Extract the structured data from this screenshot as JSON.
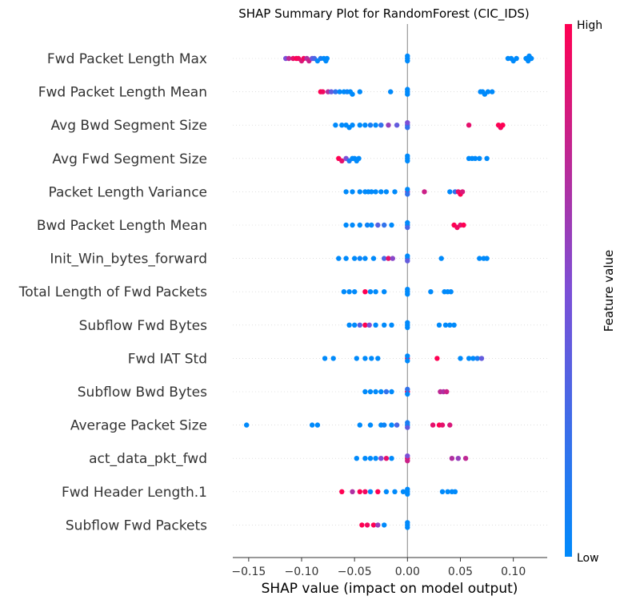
{
  "chart_data": {
    "type": "scatter",
    "subtype": "shap-beeswarm",
    "title": "SHAP Summary Plot for RandomForest (CIC_IDS)",
    "xlabel": "SHAP value (impact on model output)",
    "xlim": [
      -0.165,
      0.132
    ],
    "x_ticks": [
      -0.15,
      -0.1,
      -0.05,
      0.0,
      0.05,
      0.1
    ],
    "x_tick_labels": [
      "−0.15",
      "−0.10",
      "−0.05",
      "0.00",
      "0.05",
      "0.10"
    ],
    "colorbar": {
      "title": "Feature value",
      "high_label": "High",
      "low_label": "Low",
      "low_color": "#008afb",
      "mid_color": "#7c4fd6",
      "high_color": "#ff0052"
    },
    "features": [
      {
        "name": "Fwd Packet Length Max",
        "points": [
          {
            "x": -0.115,
            "v": 0.5
          },
          {
            "x": -0.112,
            "v": 0.75
          },
          {
            "x": -0.108,
            "v": 0.9
          },
          {
            "x": -0.105,
            "v": 1.0
          },
          {
            "x": -0.103,
            "v": 0.95
          },
          {
            "x": -0.1,
            "v": 0.85
          },
          {
            "x": -0.098,
            "v": 0.95
          },
          {
            "x": -0.095,
            "v": 0.7
          },
          {
            "x": -0.093,
            "v": 0.8
          },
          {
            "x": -0.09,
            "v": 0.45
          },
          {
            "x": -0.088,
            "v": 0.3
          },
          {
            "x": -0.085,
            "v": 0.0
          },
          {
            "x": -0.082,
            "v": 0.1
          },
          {
            "x": -0.079,
            "v": 0.0
          },
          {
            "x": -0.077,
            "v": 0.0
          },
          {
            "x": -0.076,
            "v": 0.0
          },
          {
            "x": 0.0,
            "v": 0.0
          },
          {
            "x": 0.0,
            "v": 0.0
          },
          {
            "x": 0.0,
            "v": 0.0
          },
          {
            "x": 0.095,
            "v": 0.0
          },
          {
            "x": 0.098,
            "v": 0.0
          },
          {
            "x": 0.1,
            "v": 0.0
          },
          {
            "x": 0.103,
            "v": 0.0
          },
          {
            "x": 0.112,
            "v": 0.0
          },
          {
            "x": 0.114,
            "v": 0.0
          },
          {
            "x": 0.115,
            "v": 0.0
          },
          {
            "x": 0.117,
            "v": 0.0
          }
        ]
      },
      {
        "name": "Fwd Packet Length Mean",
        "points": [
          {
            "x": -0.082,
            "v": 1.0
          },
          {
            "x": -0.08,
            "v": 0.95
          },
          {
            "x": -0.075,
            "v": 0.7
          },
          {
            "x": -0.072,
            "v": 0.4
          },
          {
            "x": -0.068,
            "v": 0.2
          },
          {
            "x": -0.064,
            "v": 0.0
          },
          {
            "x": -0.06,
            "v": 0.0
          },
          {
            "x": -0.057,
            "v": 0.05
          },
          {
            "x": -0.054,
            "v": 0.0
          },
          {
            "x": -0.052,
            "v": 0.0
          },
          {
            "x": -0.045,
            "v": 0.0
          },
          {
            "x": -0.016,
            "v": 0.0
          },
          {
            "x": 0.0,
            "v": 0.0
          },
          {
            "x": 0.0,
            "v": 0.0
          },
          {
            "x": 0.0,
            "v": 0.0
          },
          {
            "x": 0.069,
            "v": 0.0
          },
          {
            "x": 0.071,
            "v": 0.0
          },
          {
            "x": 0.073,
            "v": 0.0
          },
          {
            "x": 0.076,
            "v": 0.0
          },
          {
            "x": 0.08,
            "v": 0.0
          }
        ]
      },
      {
        "name": "Avg Bwd Segment Size",
        "points": [
          {
            "x": -0.068,
            "v": 0.0
          },
          {
            "x": -0.062,
            "v": 0.0
          },
          {
            "x": -0.058,
            "v": 0.0
          },
          {
            "x": -0.055,
            "v": 0.0
          },
          {
            "x": -0.052,
            "v": 0.0
          },
          {
            "x": -0.045,
            "v": 0.0
          },
          {
            "x": -0.04,
            "v": 0.0
          },
          {
            "x": -0.035,
            "v": 0.1
          },
          {
            "x": -0.03,
            "v": 0.0
          },
          {
            "x": -0.025,
            "v": 0.2
          },
          {
            "x": -0.018,
            "v": 0.6
          },
          {
            "x": -0.01,
            "v": 0.4
          },
          {
            "x": 0.0,
            "v": 0.3
          },
          {
            "x": 0.0,
            "v": 0.2
          },
          {
            "x": 0.0,
            "v": 0.5
          },
          {
            "x": 0.058,
            "v": 0.9
          },
          {
            "x": 0.086,
            "v": 1.0
          },
          {
            "x": 0.088,
            "v": 0.95
          },
          {
            "x": 0.09,
            "v": 1.0
          }
        ]
      },
      {
        "name": "Avg Fwd Segment Size",
        "points": [
          {
            "x": -0.065,
            "v": 1.0
          },
          {
            "x": -0.062,
            "v": 0.9
          },
          {
            "x": -0.058,
            "v": 0.5
          },
          {
            "x": -0.055,
            "v": 0.1
          },
          {
            "x": -0.052,
            "v": 0.0
          },
          {
            "x": -0.05,
            "v": 0.0
          },
          {
            "x": -0.048,
            "v": 0.0
          },
          {
            "x": -0.046,
            "v": 0.0
          },
          {
            "x": 0.0,
            "v": 0.0
          },
          {
            "x": 0.0,
            "v": 0.0
          },
          {
            "x": 0.0,
            "v": 0.0
          },
          {
            "x": 0.058,
            "v": 0.0
          },
          {
            "x": 0.061,
            "v": 0.0
          },
          {
            "x": 0.064,
            "v": 0.0
          },
          {
            "x": 0.068,
            "v": 0.0
          },
          {
            "x": 0.075,
            "v": 0.0
          }
        ]
      },
      {
        "name": "Packet Length Variance",
        "points": [
          {
            "x": -0.058,
            "v": 0.0
          },
          {
            "x": -0.052,
            "v": 0.0
          },
          {
            "x": -0.045,
            "v": 0.0
          },
          {
            "x": -0.04,
            "v": 0.0
          },
          {
            "x": -0.037,
            "v": 0.0
          },
          {
            "x": -0.034,
            "v": 0.0
          },
          {
            "x": -0.03,
            "v": 0.0
          },
          {
            "x": -0.025,
            "v": 0.0
          },
          {
            "x": -0.02,
            "v": 0.0
          },
          {
            "x": -0.012,
            "v": 0.0
          },
          {
            "x": 0.0,
            "v": 0.6
          },
          {
            "x": 0.0,
            "v": 0.2
          },
          {
            "x": 0.0,
            "v": 0.0
          },
          {
            "x": 0.016,
            "v": 0.8
          },
          {
            "x": 0.04,
            "v": 0.0
          },
          {
            "x": 0.045,
            "v": 0.2
          },
          {
            "x": 0.048,
            "v": 0.9
          },
          {
            "x": 0.05,
            "v": 1.0
          },
          {
            "x": 0.052,
            "v": 0.85
          }
        ]
      },
      {
        "name": "Bwd Packet Length Mean",
        "points": [
          {
            "x": -0.058,
            "v": 0.0
          },
          {
            "x": -0.052,
            "v": 0.0
          },
          {
            "x": -0.045,
            "v": 0.0
          },
          {
            "x": -0.038,
            "v": 0.05
          },
          {
            "x": -0.034,
            "v": 0.0
          },
          {
            "x": -0.028,
            "v": 0.35
          },
          {
            "x": -0.022,
            "v": 0.2
          },
          {
            "x": -0.015,
            "v": 0.0
          },
          {
            "x": 0.0,
            "v": 0.1
          },
          {
            "x": 0.0,
            "v": 0.3
          },
          {
            "x": 0.0,
            "v": 0.0
          },
          {
            "x": 0.044,
            "v": 1.0
          },
          {
            "x": 0.047,
            "v": 0.95
          },
          {
            "x": 0.05,
            "v": 0.9
          },
          {
            "x": 0.053,
            "v": 1.0
          }
        ]
      },
      {
        "name": "Init_Win_bytes_forward",
        "points": [
          {
            "x": -0.065,
            "v": 0.0
          },
          {
            "x": -0.058,
            "v": 0.0
          },
          {
            "x": -0.05,
            "v": 0.0
          },
          {
            "x": -0.045,
            "v": 0.05
          },
          {
            "x": -0.04,
            "v": 0.0
          },
          {
            "x": -0.032,
            "v": 0.0
          },
          {
            "x": -0.022,
            "v": 0.3
          },
          {
            "x": -0.018,
            "v": 0.9
          },
          {
            "x": -0.014,
            "v": 0.55
          },
          {
            "x": 0.0,
            "v": 0.2
          },
          {
            "x": 0.0,
            "v": 0.4
          },
          {
            "x": 0.0,
            "v": 0.0
          },
          {
            "x": 0.032,
            "v": 0.0
          },
          {
            "x": 0.068,
            "v": 0.0
          },
          {
            "x": 0.072,
            "v": 0.0
          },
          {
            "x": 0.075,
            "v": 0.0
          }
        ]
      },
      {
        "name": "Total Length of Fwd Packets",
        "points": [
          {
            "x": -0.06,
            "v": 0.0
          },
          {
            "x": -0.055,
            "v": 0.0
          },
          {
            "x": -0.05,
            "v": 0.0
          },
          {
            "x": -0.04,
            "v": 1.0
          },
          {
            "x": -0.035,
            "v": 0.0
          },
          {
            "x": -0.03,
            "v": 0.0
          },
          {
            "x": -0.022,
            "v": 0.0
          },
          {
            "x": 0.0,
            "v": 0.0
          },
          {
            "x": 0.0,
            "v": 0.0
          },
          {
            "x": 0.0,
            "v": 0.0
          },
          {
            "x": 0.022,
            "v": 0.0
          },
          {
            "x": 0.035,
            "v": 0.0
          },
          {
            "x": 0.038,
            "v": 0.0
          },
          {
            "x": 0.041,
            "v": 0.0
          }
        ]
      },
      {
        "name": "Subflow Fwd Bytes",
        "points": [
          {
            "x": -0.055,
            "v": 0.0
          },
          {
            "x": -0.05,
            "v": 0.0
          },
          {
            "x": -0.045,
            "v": 0.35
          },
          {
            "x": -0.04,
            "v": 1.0
          },
          {
            "x": -0.036,
            "v": 0.5
          },
          {
            "x": -0.03,
            "v": 0.0
          },
          {
            "x": -0.022,
            "v": 0.0
          },
          {
            "x": -0.015,
            "v": 0.0
          },
          {
            "x": 0.0,
            "v": 0.0
          },
          {
            "x": 0.0,
            "v": 0.0
          },
          {
            "x": 0.0,
            "v": 0.0
          },
          {
            "x": 0.03,
            "v": 0.0
          },
          {
            "x": 0.036,
            "v": 0.0
          },
          {
            "x": 0.04,
            "v": 0.0
          },
          {
            "x": 0.044,
            "v": 0.0
          }
        ]
      },
      {
        "name": "Fwd IAT Std",
        "points": [
          {
            "x": -0.078,
            "v": 0.0
          },
          {
            "x": -0.07,
            "v": 0.0
          },
          {
            "x": -0.048,
            "v": 0.0
          },
          {
            "x": -0.04,
            "v": 0.0
          },
          {
            "x": -0.034,
            "v": 0.0
          },
          {
            "x": -0.028,
            "v": 0.0
          },
          {
            "x": 0.0,
            "v": 0.9
          },
          {
            "x": 0.0,
            "v": 0.0
          },
          {
            "x": 0.0,
            "v": 0.0
          },
          {
            "x": 0.028,
            "v": 1.0
          },
          {
            "x": 0.05,
            "v": 0.0
          },
          {
            "x": 0.058,
            "v": 0.0
          },
          {
            "x": 0.062,
            "v": 0.0
          },
          {
            "x": 0.066,
            "v": 0.1
          },
          {
            "x": 0.07,
            "v": 0.4
          }
        ]
      },
      {
        "name": "Subflow Bwd Bytes",
        "points": [
          {
            "x": -0.04,
            "v": 0.0
          },
          {
            "x": -0.035,
            "v": 0.0
          },
          {
            "x": -0.03,
            "v": 0.0
          },
          {
            "x": -0.025,
            "v": 0.0
          },
          {
            "x": -0.02,
            "v": 0.2
          },
          {
            "x": -0.015,
            "v": 0.0
          },
          {
            "x": 0.0,
            "v": 1.0
          },
          {
            "x": 0.0,
            "v": 0.0
          },
          {
            "x": 0.0,
            "v": 0.2
          },
          {
            "x": 0.031,
            "v": 0.75
          },
          {
            "x": 0.034,
            "v": 0.7
          },
          {
            "x": 0.037,
            "v": 0.8
          }
        ]
      },
      {
        "name": "Average Packet Size",
        "points": [
          {
            "x": -0.152,
            "v": 0.0
          },
          {
            "x": -0.09,
            "v": 0.0
          },
          {
            "x": -0.085,
            "v": 0.0
          },
          {
            "x": -0.045,
            "v": 0.0
          },
          {
            "x": -0.035,
            "v": 0.0
          },
          {
            "x": -0.025,
            "v": 0.0
          },
          {
            "x": -0.022,
            "v": 0.05
          },
          {
            "x": -0.015,
            "v": 0.0
          },
          {
            "x": -0.01,
            "v": 0.3
          },
          {
            "x": 0.0,
            "v": 0.0
          },
          {
            "x": 0.0,
            "v": 0.4
          },
          {
            "x": 0.0,
            "v": 0.1
          },
          {
            "x": 0.024,
            "v": 0.9
          },
          {
            "x": 0.03,
            "v": 1.0
          },
          {
            "x": 0.033,
            "v": 0.9
          },
          {
            "x": 0.04,
            "v": 0.85
          }
        ]
      },
      {
        "name": "act_data_pkt_fwd",
        "points": [
          {
            "x": -0.048,
            "v": 0.0
          },
          {
            "x": -0.04,
            "v": 0.0
          },
          {
            "x": -0.035,
            "v": 0.0
          },
          {
            "x": -0.03,
            "v": 0.0
          },
          {
            "x": -0.025,
            "v": 0.5
          },
          {
            "x": -0.02,
            "v": 0.9
          },
          {
            "x": -0.015,
            "v": 0.0
          },
          {
            "x": 0.0,
            "v": 1.0
          },
          {
            "x": 0.0,
            "v": 0.8
          },
          {
            "x": 0.0,
            "v": 0.5
          },
          {
            "x": 0.042,
            "v": 0.7
          },
          {
            "x": 0.048,
            "v": 0.6
          },
          {
            "x": 0.055,
            "v": 0.75
          }
        ]
      },
      {
        "name": "Fwd Header Length.1",
        "points": [
          {
            "x": -0.062,
            "v": 1.0
          },
          {
            "x": -0.052,
            "v": 0.7
          },
          {
            "x": -0.045,
            "v": 1.0
          },
          {
            "x": -0.04,
            "v": 0.95
          },
          {
            "x": -0.035,
            "v": 0.0
          },
          {
            "x": -0.028,
            "v": 1.0
          },
          {
            "x": -0.02,
            "v": 0.0
          },
          {
            "x": -0.012,
            "v": 0.0
          },
          {
            "x": -0.004,
            "v": 0.0
          },
          {
            "x": 0.0,
            "v": 0.0
          },
          {
            "x": 0.0,
            "v": 0.0
          },
          {
            "x": 0.0,
            "v": 0.0
          },
          {
            "x": 0.033,
            "v": 0.0
          },
          {
            "x": 0.038,
            "v": 0.0
          },
          {
            "x": 0.042,
            "v": 0.0
          },
          {
            "x": 0.045,
            "v": 0.0
          }
        ]
      },
      {
        "name": "Subflow Fwd Packets",
        "points": [
          {
            "x": -0.043,
            "v": 1.0
          },
          {
            "x": -0.038,
            "v": 0.95
          },
          {
            "x": -0.032,
            "v": 1.0
          },
          {
            "x": -0.028,
            "v": 0.6
          },
          {
            "x": -0.022,
            "v": 0.0
          },
          {
            "x": 0.0,
            "v": 0.0
          },
          {
            "x": 0.0,
            "v": 0.0
          },
          {
            "x": 0.0,
            "v": 0.0
          }
        ]
      }
    ]
  }
}
